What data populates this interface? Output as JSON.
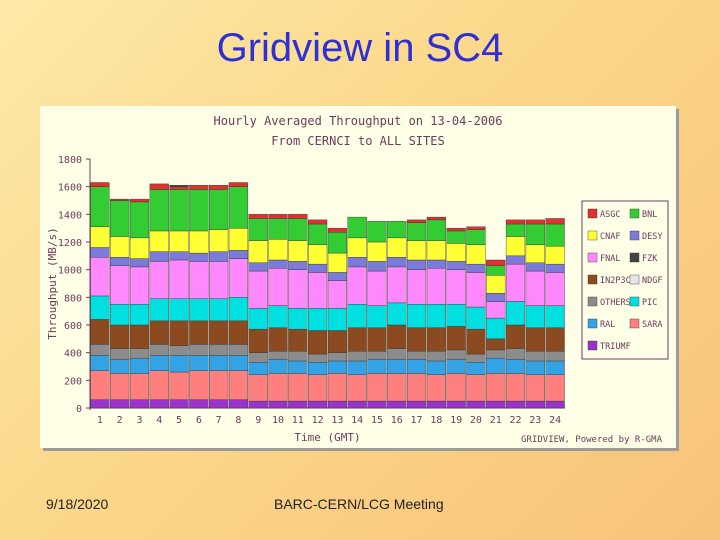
{
  "slide": {
    "title": "Gridview in SC4",
    "footer_date": "9/18/2020",
    "footer_text": "BARC-CERN/LCG Meeting"
  },
  "chart_data": {
    "type": "bar",
    "stacked": true,
    "title": "Hourly Averaged Throughput on 13-04-2006",
    "subtitle": "From CERNCI to ALL SITES",
    "xlabel": "Time (GMT)",
    "ylabel": "Throughput (MB/s)",
    "credit": "GRIDVIEW, Powered by R-GMA",
    "ylim": [
      0,
      1800
    ],
    "yticks": [
      "0",
      "200",
      "400",
      "600",
      "800",
      "1000",
      "1200",
      "1400",
      "1600",
      "1800"
    ],
    "categories": [
      "1",
      "2",
      "3",
      "4",
      "5",
      "6",
      "7",
      "8",
      "9",
      "10",
      "11",
      "12",
      "13",
      "14",
      "15",
      "16",
      "17",
      "18",
      "19",
      "20",
      "21",
      "22",
      "23",
      "24"
    ],
    "series": [
      {
        "name": "TRIUMF",
        "color": "#9933cc",
        "values": [
          60,
          60,
          60,
          60,
          60,
          60,
          60,
          60,
          50,
          50,
          50,
          50,
          50,
          50,
          50,
          50,
          50,
          50,
          50,
          50,
          50,
          50,
          50,
          50
        ]
      },
      {
        "name": "SARA",
        "color": "#ff7f7f",
        "values": [
          210,
          190,
          190,
          210,
          200,
          210,
          210,
          210,
          190,
          200,
          200,
          190,
          200,
          190,
          200,
          200,
          200,
          190,
          200,
          190,
          200,
          200,
          190,
          190
        ]
      },
      {
        "name": "RAL",
        "color": "#33a3e6",
        "values": [
          110,
          100,
          110,
          110,
          120,
          110,
          110,
          110,
          90,
          100,
          90,
          90,
          90,
          100,
          100,
          100,
          100,
          100,
          100,
          90,
          110,
          100,
          100,
          100
        ]
      },
      {
        "name": "OTHERS",
        "color": "#8c8c8c",
        "values": [
          80,
          80,
          70,
          80,
          70,
          80,
          80,
          80,
          70,
          60,
          70,
          60,
          60,
          70,
          60,
          80,
          60,
          70,
          70,
          60,
          60,
          80,
          70,
          70
        ]
      },
      {
        "name": "IN2P3CC",
        "color": "#8b4a1f",
        "values": [
          180,
          170,
          170,
          170,
          180,
          170,
          170,
          170,
          170,
          170,
          160,
          170,
          160,
          170,
          170,
          170,
          170,
          170,
          170,
          180,
          80,
          170,
          170,
          170
        ]
      },
      {
        "name": "PIC",
        "color": "#00e0e0",
        "values": [
          170,
          150,
          150,
          160,
          160,
          160,
          160,
          170,
          150,
          160,
          150,
          160,
          160,
          170,
          160,
          160,
          170,
          170,
          160,
          160,
          150,
          170,
          160,
          160
        ]
      },
      {
        "name": "FNAL",
        "color": "#ff88ff",
        "values": [
          280,
          280,
          270,
          270,
          280,
          270,
          270,
          280,
          270,
          270,
          280,
          260,
          200,
          270,
          250,
          260,
          250,
          260,
          250,
          250,
          120,
          270,
          250,
          240
        ]
      },
      {
        "name": "DESY",
        "color": "#7b7bd9",
        "values": [
          70,
          60,
          60,
          70,
          60,
          60,
          70,
          60,
          60,
          60,
          60,
          60,
          60,
          70,
          70,
          70,
          70,
          60,
          60,
          60,
          60,
          60,
          60,
          60
        ]
      },
      {
        "name": "CNAF",
        "color": "#ffff33",
        "values": [
          150,
          150,
          150,
          150,
          150,
          160,
          160,
          160,
          160,
          150,
          150,
          140,
          140,
          140,
          140,
          140,
          140,
          140,
          130,
          140,
          130,
          140,
          130,
          130
        ]
      },
      {
        "name": "BNL",
        "color": "#33cc33",
        "values": [
          290,
          260,
          260,
          300,
          300,
          300,
          290,
          300,
          160,
          150,
          160,
          150,
          150,
          150,
          150,
          120,
          130,
          150,
          90,
          110,
          70,
          90,
          150,
          160
        ]
      },
      {
        "name": "ASGC",
        "color": "#e03030",
        "values": [
          30,
          10,
          20,
          40,
          20,
          30,
          30,
          30,
          30,
          30,
          30,
          30,
          30,
          0,
          0,
          0,
          20,
          20,
          20,
          20,
          40,
          30,
          30,
          40
        ]
      },
      {
        "name": "FZK",
        "color": "#444444",
        "values": [
          0,
          0,
          0,
          0,
          10,
          0,
          0,
          0,
          0,
          0,
          0,
          0,
          0,
          0,
          0,
          0,
          0,
          0,
          0,
          0,
          0,
          0,
          0,
          0
        ]
      },
      {
        "name": "NDGF",
        "color": "#e6e6e6",
        "values": [
          0,
          0,
          0,
          0,
          0,
          0,
          0,
          0,
          0,
          0,
          0,
          0,
          0,
          0,
          0,
          0,
          0,
          0,
          0,
          0,
          0,
          0,
          0,
          0
        ]
      }
    ],
    "legend_order": [
      "ASGC",
      "BNL",
      "CNAF",
      "DESY",
      "FNAL",
      "FZK",
      "IN2P3CC",
      "NDGF",
      "OTHERS",
      "PIC",
      "RAL",
      "SARA",
      "TRIUMF"
    ],
    "legend_position": "right",
    "grid": false
  }
}
